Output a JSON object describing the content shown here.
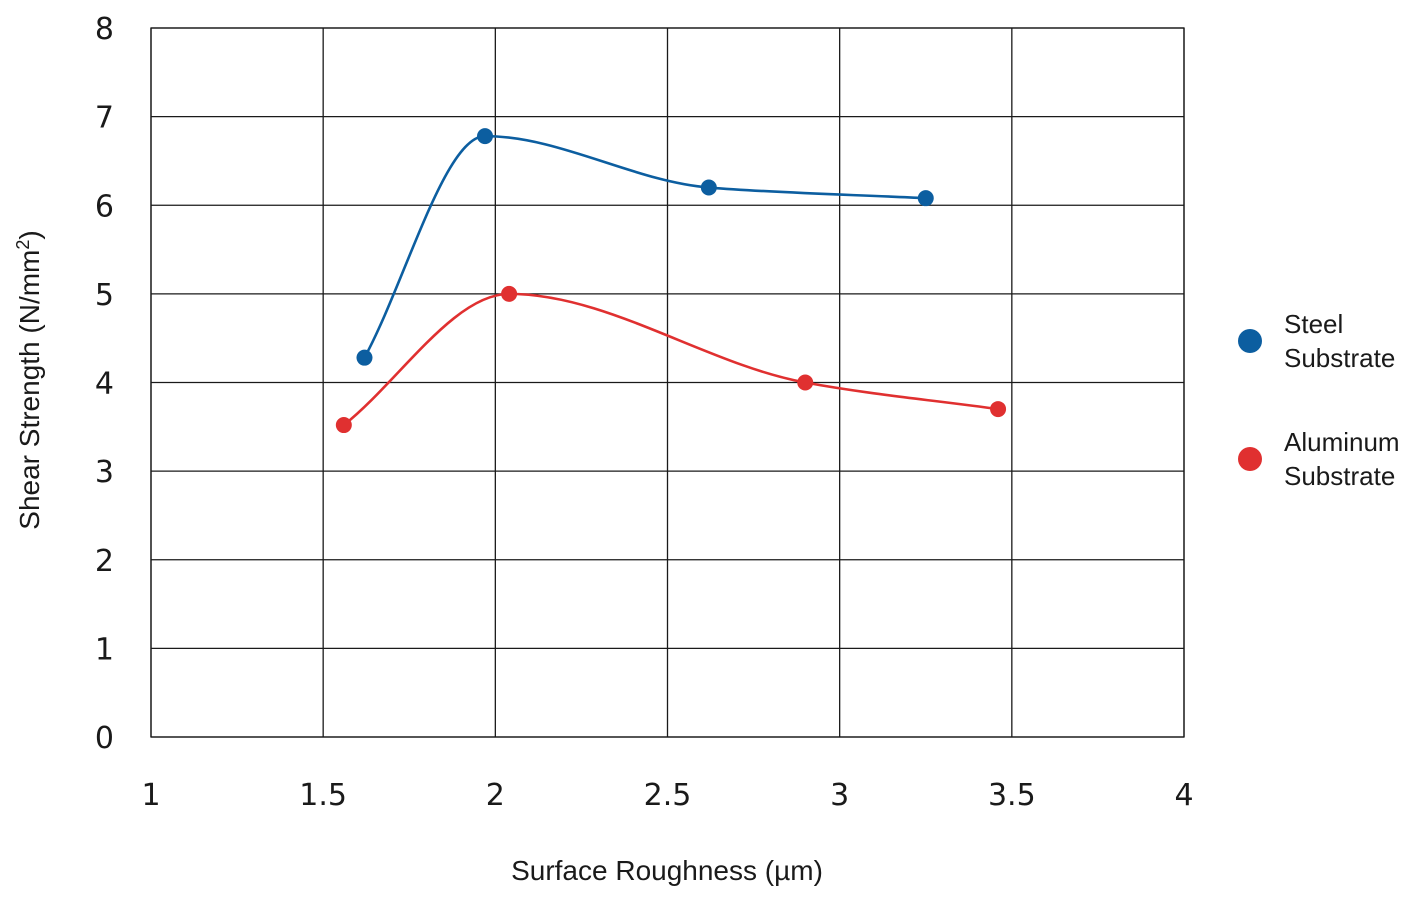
{
  "chart_data": {
    "type": "line",
    "xlabel": "Surface Roughness (µm)",
    "ylabel_main": "Shear Strength (N/mm",
    "ylabel_sup": "2",
    "ylabel_close": ")",
    "xlim": [
      1,
      4
    ],
    "ylim": [
      0,
      8
    ],
    "xticks": [
      1,
      1.5,
      2,
      2.5,
      3,
      3.5,
      4
    ],
    "xtick_labels": [
      "1",
      "1.5",
      "2",
      "2.5",
      "3",
      "3.5",
      "4"
    ],
    "yticks": [
      0,
      1,
      2,
      3,
      4,
      5,
      6,
      7,
      8
    ],
    "ytick_labels": [
      "0",
      "1",
      "2",
      "3",
      "4",
      "5",
      "6",
      "7",
      "8"
    ],
    "grid": true,
    "legend_position": "right",
    "series": [
      {
        "key": "steel",
        "legend_lines": [
          "Steel",
          "Substrate"
        ],
        "color": "#0c5ea0",
        "x": [
          1.62,
          1.97,
          2.62,
          3.25
        ],
        "y": [
          4.28,
          6.78,
          6.2,
          6.08
        ]
      },
      {
        "key": "aluminum",
        "legend_lines": [
          "Aluminum",
          "Substrate"
        ],
        "color": "#e03030",
        "x": [
          1.56,
          2.04,
          2.9,
          3.46
        ],
        "y": [
          3.52,
          5.0,
          4.0,
          3.7
        ]
      }
    ]
  }
}
